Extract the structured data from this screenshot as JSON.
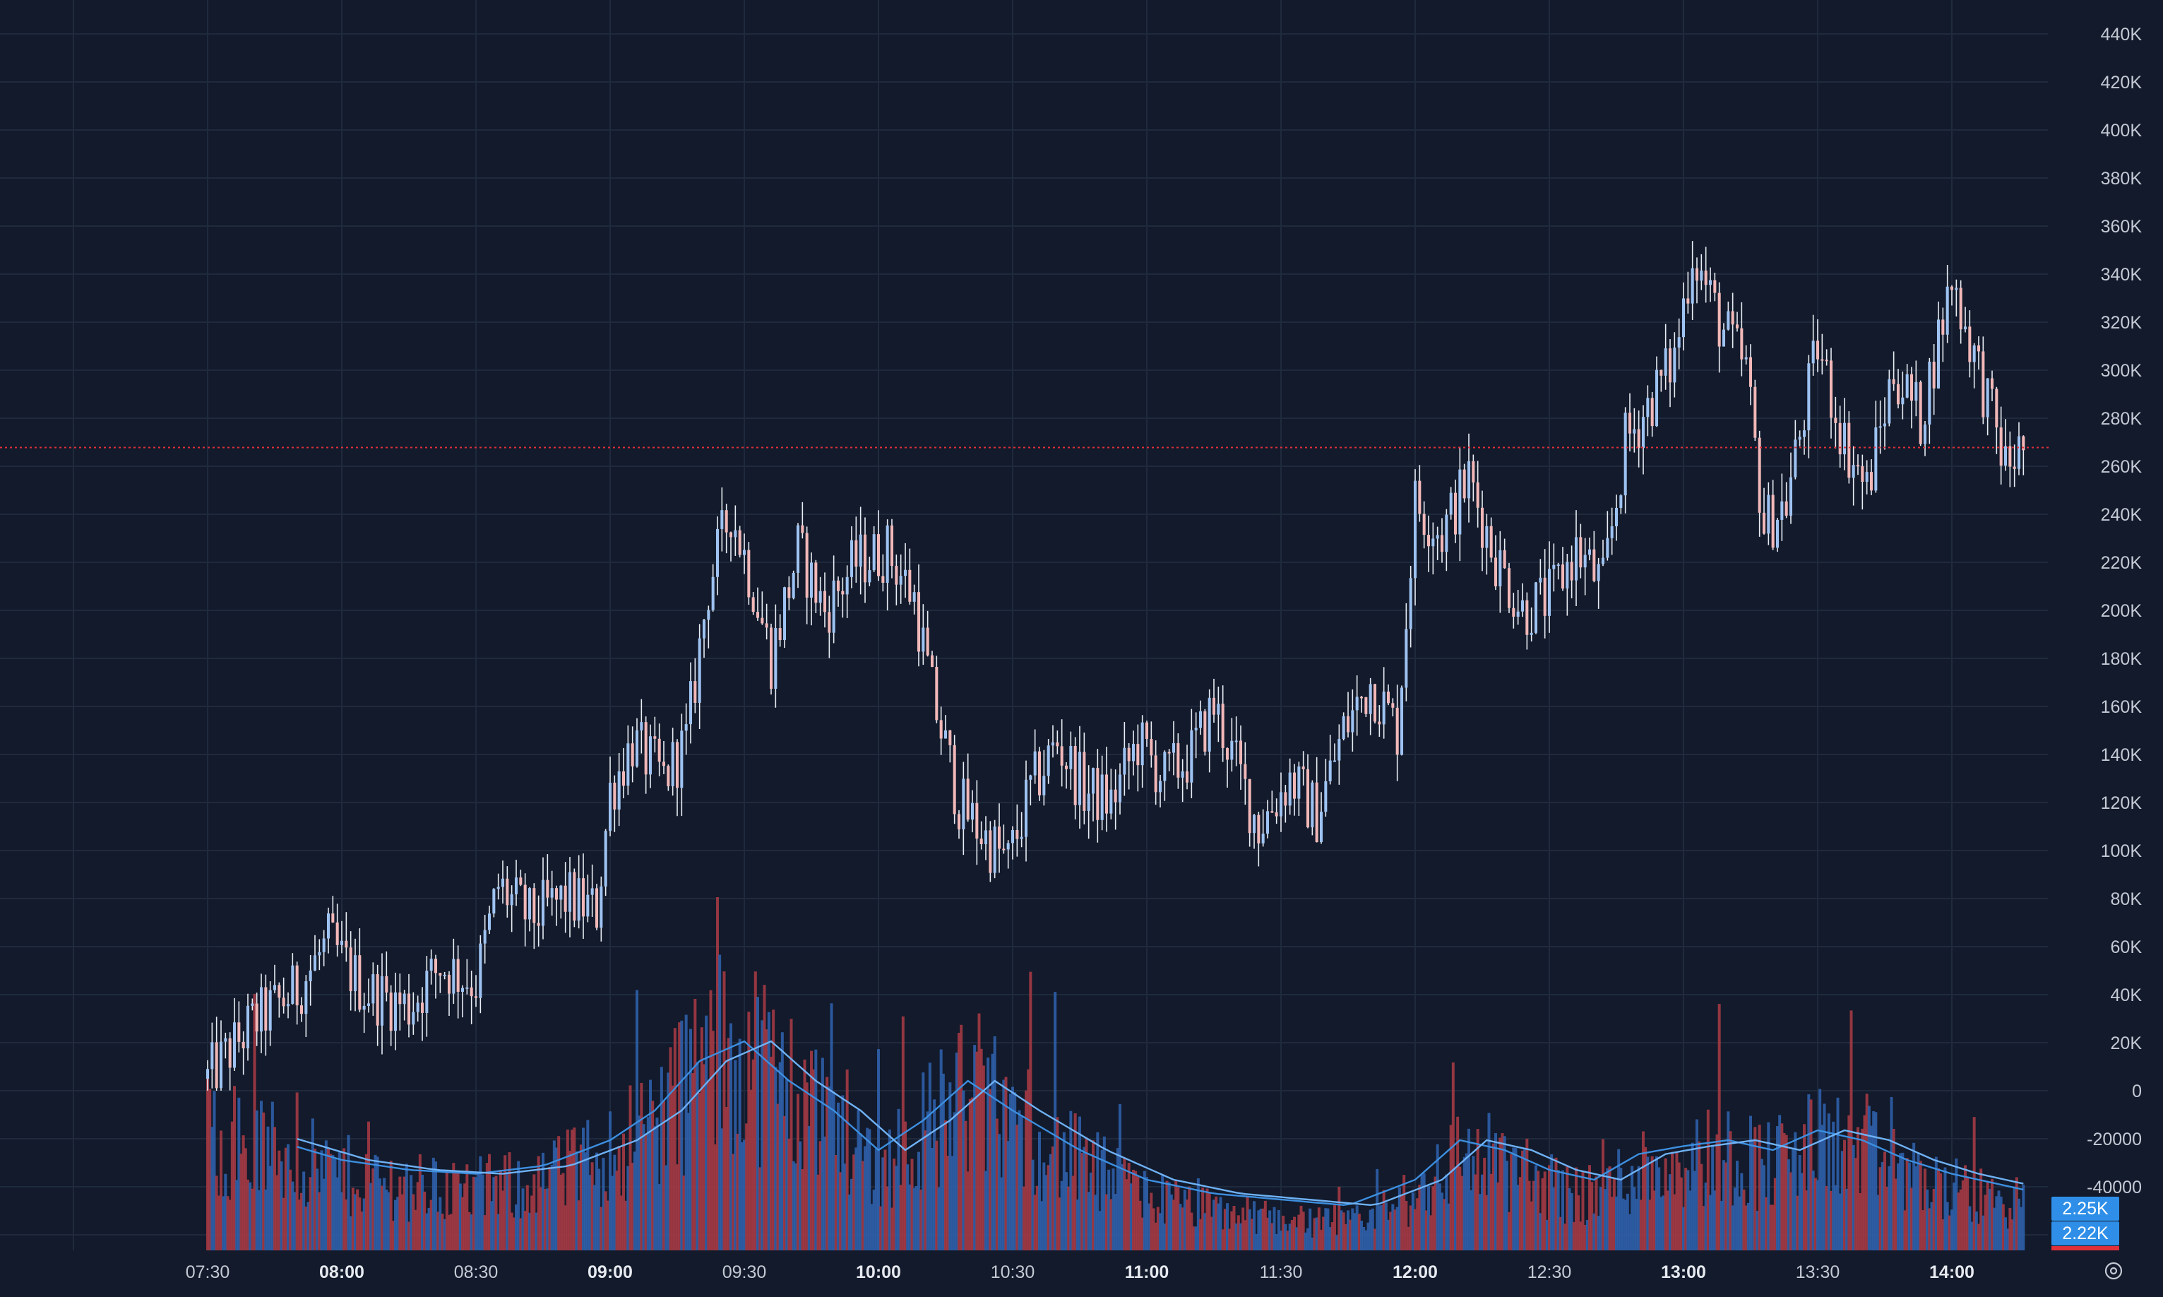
{
  "chart_data": {
    "type": "candlestick",
    "colors": {
      "background": "#121a2b",
      "grid": "#1f2a3d",
      "candle_up": "#9ec3f2",
      "candle_down": "#f2b8b8",
      "wick": "#e8ecf4",
      "volume_up": "#2f5fa8",
      "volume_down": "#a33a44",
      "ma_line": "#3d8fe0",
      "last_price_line": "#e0303a",
      "last_price_tag": "#e0303a",
      "volume_tag": "#2f8fe8"
    },
    "price_axis": {
      "ticks": [
        "440K",
        "420K",
        "400K",
        "380K",
        "360K",
        "340K",
        "320K",
        "300K",
        "280K",
        "260K",
        "240K",
        "220K",
        "200K",
        "180K",
        "160K",
        "140K",
        "120K",
        "100K",
        "80K",
        "60K",
        "40K",
        "20K",
        "0"
      ],
      "range": [
        -60000,
        450000
      ]
    },
    "volume_axis": {
      "ticks": [
        "-20000",
        "-40000"
      ]
    },
    "time_axis": {
      "ticks": [
        "07:30",
        "08:00",
        "08:30",
        "09:00",
        "09:30",
        "10:00",
        "10:30",
        "11:00",
        "11:30",
        "12:00",
        "12:30",
        "13:00",
        "13:30",
        "14:00"
      ],
      "bold_ticks": [
        "08:00",
        "09:00",
        "10:00",
        "11:00",
        "12:00",
        "13:00",
        "14:00"
      ]
    },
    "last_price": {
      "label": "267.8K",
      "value": 267800
    },
    "volume_labels": [
      "2.25K",
      "2.22K"
    ],
    "settings_icon": "gear-icon",
    "price_path": [
      [
        "07:30",
        5000
      ],
      [
        "07:40",
        28000
      ],
      [
        "07:50",
        42000
      ],
      [
        "07:57",
        62000
      ],
      [
        "08:05",
        42000
      ],
      [
        "08:15",
        35000
      ],
      [
        "08:22",
        52000
      ],
      [
        "08:30",
        45000
      ],
      [
        "08:35",
        85000
      ],
      [
        "08:42",
        72000
      ],
      [
        "08:50",
        80000
      ],
      [
        "08:57",
        75000
      ],
      [
        "09:00",
        125000
      ],
      [
        "09:05",
        145000
      ],
      [
        "09:12",
        130000
      ],
      [
        "09:17",
        145000
      ],
      [
        "09:22",
        210000
      ],
      [
        "09:27",
        242000
      ],
      [
        "09:32",
        210000
      ],
      [
        "09:36",
        180000
      ],
      [
        "09:42",
        225000
      ],
      [
        "09:48",
        200000
      ],
      [
        "09:55",
        220000
      ],
      [
        "10:02",
        225000
      ],
      [
        "10:08",
        205000
      ],
      [
        "10:12",
        165000
      ],
      [
        "10:18",
        120000
      ],
      [
        "10:24",
        105000
      ],
      [
        "10:29",
        95000
      ],
      [
        "10:34",
        125000
      ],
      [
        "10:40",
        145000
      ],
      [
        "10:46",
        125000
      ],
      [
        "10:52",
        120000
      ],
      [
        "10:58",
        145000
      ],
      [
        "11:04",
        130000
      ],
      [
        "11:10",
        140000
      ],
      [
        "11:15",
        160000
      ],
      [
        "11:20",
        135000
      ],
      [
        "11:25",
        110000
      ],
      [
        "11:32",
        130000
      ],
      [
        "11:38",
        115000
      ],
      [
        "11:44",
        150000
      ],
      [
        "11:50",
        170000
      ],
      [
        "11:56",
        150000
      ],
      [
        "12:00",
        245000
      ],
      [
        "12:06",
        232000
      ],
      [
        "12:12",
        255000
      ],
      [
        "12:18",
        222000
      ],
      [
        "12:24",
        200000
      ],
      [
        "12:30",
        205000
      ],
      [
        "12:36",
        225000
      ],
      [
        "12:42",
        210000
      ],
      [
        "12:47",
        270000
      ],
      [
        "12:52",
        285000
      ],
      [
        "12:58",
        305000
      ],
      [
        "13:02",
        350000
      ],
      [
        "13:08",
        320000
      ],
      [
        "13:14",
        300000
      ],
      [
        "13:18",
        235000
      ],
      [
        "13:23",
        245000
      ],
      [
        "13:30",
        310000
      ],
      [
        "13:36",
        270000
      ],
      [
        "13:41",
        250000
      ],
      [
        "13:47",
        300000
      ],
      [
        "13:53",
        280000
      ],
      [
        "14:00",
        338000
      ],
      [
        "14:06",
        300000
      ],
      [
        "14:12",
        260000
      ],
      [
        "14:16",
        267800
      ]
    ],
    "volume_path": [
      [
        "07:30",
        55
      ],
      [
        "07:45",
        45
      ],
      [
        "08:00",
        35
      ],
      [
        "08:15",
        30
      ],
      [
        "08:30",
        28
      ],
      [
        "08:45",
        32
      ],
      [
        "09:00",
        45
      ],
      [
        "09:10",
        60
      ],
      [
        "09:20",
        85
      ],
      [
        "09:30",
        95
      ],
      [
        "09:40",
        75
      ],
      [
        "09:50",
        60
      ],
      [
        "10:00",
        40
      ],
      [
        "10:10",
        55
      ],
      [
        "10:20",
        75
      ],
      [
        "10:30",
        60
      ],
      [
        "10:45",
        40
      ],
      [
        "11:00",
        25
      ],
      [
        "11:15",
        18
      ],
      [
        "11:30",
        15
      ],
      [
        "11:45",
        12
      ],
      [
        "12:00",
        25
      ],
      [
        "12:10",
        45
      ],
      [
        "12:20",
        40
      ],
      [
        "12:30",
        30
      ],
      [
        "12:40",
        25
      ],
      [
        "12:50",
        38
      ],
      [
        "13:00",
        42
      ],
      [
        "13:10",
        45
      ],
      [
        "13:20",
        40
      ],
      [
        "13:30",
        50
      ],
      [
        "13:40",
        45
      ],
      [
        "13:50",
        35
      ],
      [
        "14:00",
        28
      ],
      [
        "14:16",
        20
      ]
    ]
  }
}
